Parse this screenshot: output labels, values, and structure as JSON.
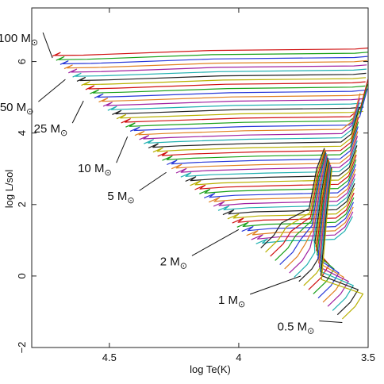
{
  "chart_data": {
    "type": "line",
    "xlabel": "log Te(K)",
    "ylabel": "log L/sol",
    "xlim": [
      4.8,
      3.5
    ],
    "ylim": [
      -2.0,
      7.5
    ],
    "x_axis_reversed": true,
    "x_ticks": [
      {
        "value": 4.5,
        "label": "4.5"
      },
      {
        "value": 4.0,
        "label": "4"
      },
      {
        "value": 3.5,
        "label": "3.5"
      }
    ],
    "y_ticks": [
      {
        "value": -2,
        "label": "−2"
      },
      {
        "value": 0,
        "label": "0"
      },
      {
        "value": 2,
        "label": "2"
      },
      {
        "value": 4,
        "label": "4"
      },
      {
        "value": 6,
        "label": "6"
      }
    ],
    "grid": false,
    "mass_annotations": [
      {
        "text": "100 M",
        "symbol": "⊙",
        "zams_point": [
          4.72,
          6.1
        ]
      },
      {
        "text": "50 M",
        "symbol": "⊙",
        "zams_point": [
          4.67,
          5.5
        ]
      },
      {
        "text": "25 M",
        "symbol": "⊙",
        "zams_point": [
          4.6,
          4.9
        ]
      },
      {
        "text": "10 M",
        "symbol": "⊙",
        "zams_point": [
          4.43,
          3.9
        ]
      },
      {
        "text": "5 M",
        "symbol": "⊙",
        "zams_point": [
          4.28,
          2.9
        ]
      },
      {
        "text": "2 M",
        "symbol": "⊙",
        "zams_point": [
          4.0,
          1.3
        ]
      },
      {
        "text": "1 M",
        "symbol": "⊙",
        "zams_point": [
          3.76,
          0.0
        ]
      },
      {
        "text": "0.5 M",
        "symbol": "⊙",
        "zams_point": [
          3.6,
          -1.3
        ]
      }
    ],
    "track_palette": [
      "#d01010",
      "#18a018",
      "#2838d8",
      "#e08020",
      "#a020a0",
      "#1fb0b0",
      "#202020",
      "#b8b000"
    ]
  }
}
